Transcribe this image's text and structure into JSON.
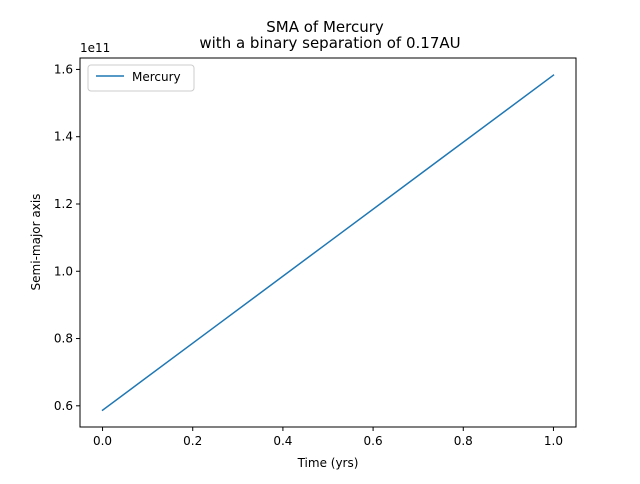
{
  "chart_data": {
    "type": "line",
    "title": "SMA of Mercury",
    "subtitle": "with a binary separation of 0.17AU",
    "xlabel": "Time (yrs)",
    "ylabel": "Semi-major axis",
    "y_offset_label": "1e11",
    "xlim": [
      -0.05,
      1.05
    ],
    "ylim": [
      0.537,
      1.634
    ],
    "x_ticks": [
      0.0,
      0.2,
      0.4,
      0.6,
      0.8,
      1.0
    ],
    "x_tick_labels": [
      "0.0",
      "0.2",
      "0.4",
      "0.6",
      "0.8",
      "1.0"
    ],
    "y_ticks": [
      0.6,
      0.8,
      1.0,
      1.2,
      1.4,
      1.6
    ],
    "y_tick_labels": [
      "0.6",
      "0.8",
      "1.0",
      "1.2",
      "1.4",
      "1.6"
    ],
    "grid": false,
    "legend_position": "upper-left",
    "series": [
      {
        "name": "Mercury",
        "color": "#1f77b4",
        "x": [
          0.0,
          0.25,
          0.5,
          0.75,
          1.0
        ],
        "y": [
          0.587,
          0.836,
          1.085,
          1.334,
          1.583
        ]
      }
    ]
  }
}
